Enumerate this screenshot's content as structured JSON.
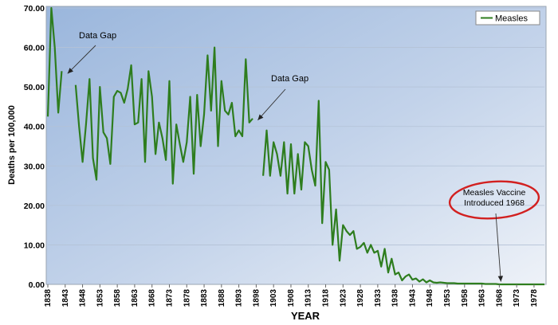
{
  "chart_data": {
    "type": "line",
    "ylabel": "Deaths per 100,000",
    "xlabel": "YEAR",
    "ylim": [
      0,
      70
    ],
    "y_ticks": [
      "0.00",
      "10.00",
      "20.00",
      "30.00",
      "40.00",
      "50.00",
      "60.00",
      "70.00"
    ],
    "x_range": [
      1838,
      1981
    ],
    "x_ticks": [
      "1838",
      "1843",
      "1848",
      "1853",
      "1858",
      "1863",
      "1868",
      "1873",
      "1878",
      "1883",
      "1888",
      "1893",
      "1898",
      "1903",
      "1908",
      "1913",
      "1918",
      "1923",
      "1928",
      "1933",
      "1938",
      "1943",
      "1948",
      "1953",
      "1958",
      "1963",
      "1968",
      "1973",
      "1978"
    ],
    "grid": "horizontal",
    "legend_position": "top-right",
    "series": [
      {
        "name": "Measles",
        "color": "#2e7d1e",
        "segments": [
          [
            [
              1838,
              42.5
            ],
            [
              1839,
              70.0
            ],
            [
              1840,
              60.0
            ],
            [
              1841,
              43.5
            ],
            [
              1842,
              54.0
            ]
          ],
          [
            [
              1846,
              50.5
            ],
            [
              1847,
              40.0
            ],
            [
              1848,
              31.0
            ],
            [
              1849,
              40.5
            ],
            [
              1850,
              52.0
            ],
            [
              1851,
              32.0
            ],
            [
              1852,
              26.5
            ],
            [
              1853,
              50.0
            ],
            [
              1854,
              38.5
            ],
            [
              1855,
              37.0
            ],
            [
              1856,
              30.5
            ],
            [
              1857,
              47.5
            ],
            [
              1858,
              49.0
            ],
            [
              1859,
              48.5
            ],
            [
              1860,
              46.0
            ],
            [
              1861,
              49.5
            ],
            [
              1862,
              55.5
            ],
            [
              1863,
              40.5
            ],
            [
              1864,
              41.0
            ],
            [
              1865,
              52.0
            ],
            [
              1866,
              31.0
            ],
            [
              1867,
              54.0
            ],
            [
              1868,
              47.5
            ],
            [
              1869,
              33.0
            ],
            [
              1870,
              41.0
            ],
            [
              1871,
              37.0
            ],
            [
              1872,
              31.5
            ],
            [
              1873,
              51.5
            ],
            [
              1874,
              25.5
            ],
            [
              1875,
              40.5
            ],
            [
              1876,
              35.5
            ],
            [
              1877,
              31.0
            ],
            [
              1878,
              36.0
            ],
            [
              1879,
              47.5
            ],
            [
              1880,
              28.0
            ],
            [
              1881,
              48.0
            ],
            [
              1882,
              35.0
            ],
            [
              1883,
              43.0
            ],
            [
              1884,
              58.0
            ],
            [
              1885,
              44.0
            ],
            [
              1886,
              60.0
            ],
            [
              1887,
              35.0
            ],
            [
              1888,
              51.5
            ],
            [
              1889,
              44.0
            ],
            [
              1890,
              43.0
            ],
            [
              1891,
              46.0
            ],
            [
              1892,
              37.5
            ],
            [
              1893,
              39.0
            ],
            [
              1894,
              37.5
            ],
            [
              1895,
              57.0
            ],
            [
              1896,
              41.0
            ],
            [
              1897,
              42.0
            ]
          ],
          [
            [
              1900,
              27.5
            ],
            [
              1901,
              39.0
            ],
            [
              1902,
              27.5
            ],
            [
              1903,
              36.0
            ],
            [
              1904,
              33.0
            ],
            [
              1905,
              27.5
            ],
            [
              1906,
              36.0
            ],
            [
              1907,
              23.0
            ],
            [
              1908,
              35.5
            ],
            [
              1909,
              23.0
            ],
            [
              1910,
              33.0
            ],
            [
              1911,
              24.0
            ],
            [
              1912,
              36.0
            ],
            [
              1913,
              35.0
            ],
            [
              1914,
              29.0
            ],
            [
              1915,
              25.0
            ],
            [
              1916,
              46.5
            ],
            [
              1917,
              15.5
            ],
            [
              1918,
              31.0
            ],
            [
              1919,
              29.0
            ],
            [
              1920,
              10.0
            ],
            [
              1921,
              19.0
            ],
            [
              1922,
              6.0
            ],
            [
              1923,
              15.0
            ],
            [
              1924,
              13.5
            ],
            [
              1925,
              12.5
            ],
            [
              1926,
              13.5
            ],
            [
              1927,
              9.0
            ],
            [
              1928,
              9.5
            ],
            [
              1929,
              10.5
            ],
            [
              1930,
              8.0
            ],
            [
              1931,
              10.0
            ],
            [
              1932,
              8.0
            ],
            [
              1933,
              8.5
            ],
            [
              1934,
              4.5
            ],
            [
              1935,
              9.0
            ],
            [
              1936,
              3.0
            ],
            [
              1937,
              6.5
            ],
            [
              1938,
              2.5
            ],
            [
              1939,
              3.0
            ],
            [
              1940,
              1.0
            ],
            [
              1941,
              2.0
            ],
            [
              1942,
              2.5
            ],
            [
              1943,
              1.2
            ],
            [
              1944,
              1.5
            ],
            [
              1945,
              0.7
            ],
            [
              1946,
              1.3
            ],
            [
              1947,
              0.5
            ],
            [
              1948,
              1.0
            ],
            [
              1949,
              0.5
            ],
            [
              1950,
              0.4
            ],
            [
              1951,
              0.5
            ],
            [
              1952,
              0.4
            ],
            [
              1953,
              0.3
            ],
            [
              1954,
              0.3
            ],
            [
              1955,
              0.3
            ],
            [
              1956,
              0.2
            ],
            [
              1957,
              0.2
            ],
            [
              1958,
              0.2
            ],
            [
              1959,
              0.2
            ],
            [
              1960,
              0.2
            ],
            [
              1961,
              0.2
            ],
            [
              1962,
              0.2
            ],
            [
              1963,
              0.2
            ],
            [
              1964,
              0.1
            ],
            [
              1965,
              0.1
            ],
            [
              1966,
              0.1
            ],
            [
              1967,
              0.1
            ],
            [
              1968,
              0.0
            ],
            [
              1969,
              0.0
            ],
            [
              1970,
              0.0
            ],
            [
              1971,
              0.0
            ],
            [
              1972,
              0.0
            ],
            [
              1973,
              0.0
            ],
            [
              1974,
              0.0
            ],
            [
              1975,
              0.0
            ],
            [
              1976,
              0.0
            ],
            [
              1977,
              0.0
            ],
            [
              1978,
              0.0
            ],
            [
              1979,
              0.0
            ],
            [
              1980,
              0.0
            ],
            [
              1981,
              0.0
            ]
          ]
        ]
      }
    ],
    "annotations": [
      {
        "text": "Data Gap",
        "arrow_to": [
          1843,
          54
        ]
      },
      {
        "text": "Data Gap",
        "arrow_to": [
          1898,
          42
        ]
      },
      {
        "text": "Measles Vaccine Introduced 1968",
        "lines": [
          "Measles Vaccine",
          "Introduced 1968"
        ],
        "arrow_to": [
          1968,
          0.3
        ],
        "circled": true,
        "circle_color": "#d22020"
      }
    ]
  }
}
